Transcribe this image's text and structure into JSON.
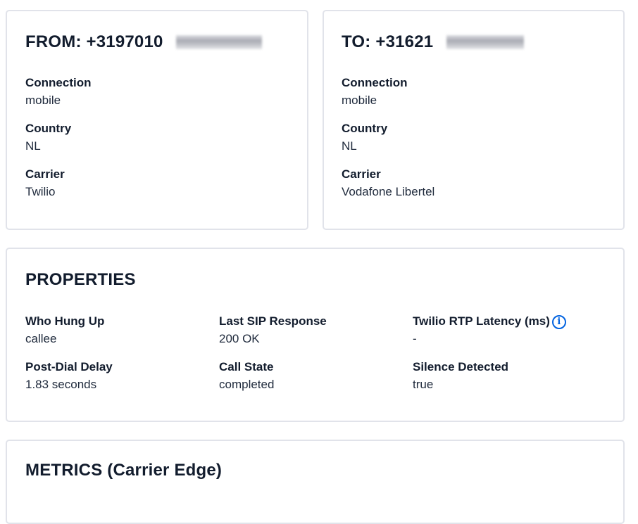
{
  "from": {
    "title": "FROM: +3197010",
    "fields": [
      {
        "label": "Connection",
        "value": "mobile"
      },
      {
        "label": "Country",
        "value": "NL"
      },
      {
        "label": "Carrier",
        "value": "Twilio"
      }
    ]
  },
  "to": {
    "title": "TO: +31621",
    "fields": [
      {
        "label": "Connection",
        "value": "mobile"
      },
      {
        "label": "Country",
        "value": "NL"
      },
      {
        "label": "Carrier",
        "value": "Vodafone Libertel"
      }
    ]
  },
  "properties": {
    "title": "PROPERTIES",
    "fields": [
      {
        "label": "Who Hung Up",
        "value": "callee"
      },
      {
        "label": "Last SIP Response",
        "value": "200 OK"
      },
      {
        "label": "Twilio RTP Latency (ms)",
        "value": "-",
        "icon": "info-icon"
      },
      {
        "label": "Post-Dial Delay",
        "value": "1.83 seconds"
      },
      {
        "label": "Call State",
        "value": "completed"
      },
      {
        "label": "Silence Detected",
        "value": "true"
      }
    ]
  },
  "metrics": {
    "title": "METRICS (Carrier Edge)"
  },
  "colors": {
    "accent": "#0263e0",
    "border": "#e1e3ea",
    "text": "#121c2d"
  }
}
